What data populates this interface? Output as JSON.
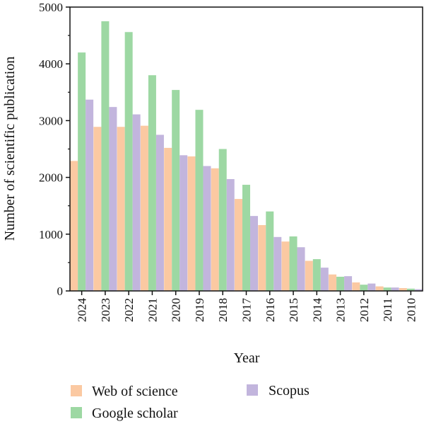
{
  "chart_data": {
    "type": "bar",
    "title": "",
    "xlabel": "Year",
    "ylabel": "Number of scientific publication",
    "ylim": [
      0,
      5000
    ],
    "yticks": [
      0,
      1000,
      2000,
      3000,
      4000,
      5000
    ],
    "categories": [
      "2024",
      "2023",
      "2022",
      "2021",
      "2020",
      "2019",
      "2018",
      "2017",
      "2016",
      "2015",
      "2014",
      "2013",
      "2012",
      "2011",
      "2010"
    ],
    "series": [
      {
        "name": "Web of science",
        "color": "#fbc9a2",
        "values": [
          2290,
          2890,
          2890,
          2910,
          2520,
          2370,
          2160,
          1620,
          1160,
          870,
          530,
          290,
          150,
          80,
          50
        ]
      },
      {
        "name": "Google scholar",
        "color": "#9dd8a3",
        "values": [
          4200,
          4750,
          4560,
          3800,
          3540,
          3190,
          2500,
          1870,
          1400,
          960,
          560,
          250,
          110,
          60,
          40
        ]
      },
      {
        "name": "Scopus",
        "color": "#c2b5dd",
        "values": [
          3370,
          3240,
          3110,
          2750,
          2390,
          2200,
          1970,
          1320,
          950,
          770,
          410,
          260,
          130,
          60,
          30
        ]
      }
    ],
    "grid": false,
    "legend_placement": "bottom"
  }
}
